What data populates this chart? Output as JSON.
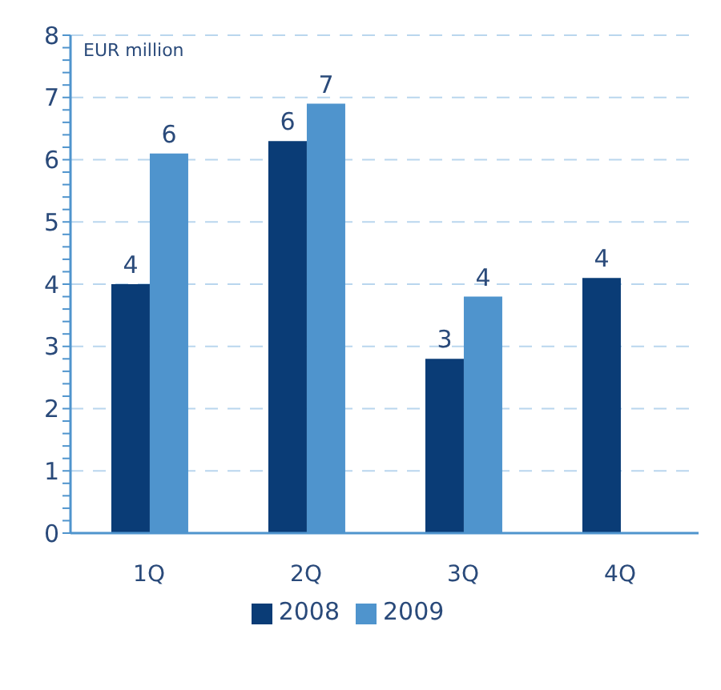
{
  "chart_data": {
    "type": "bar",
    "ylabel": "EUR million",
    "categories": [
      "1Q",
      "2Q",
      "3Q",
      "4Q"
    ],
    "series": [
      {
        "name": "2008",
        "color": "#0a3c76",
        "values": [
          4.0,
          6.3,
          2.8,
          4.1
        ],
        "value_labels": [
          "4",
          "6",
          "3",
          "4"
        ]
      },
      {
        "name": "2009",
        "color": "#4f94cd",
        "values": [
          6.1,
          6.9,
          3.8,
          null
        ],
        "value_labels": [
          "6",
          "7",
          "4",
          null
        ]
      }
    ],
    "ylim": [
      0,
      8
    ],
    "yticks": [
      0,
      {
        "value": 0.2,
        "label": null
      },
      {
        "value": 0.4,
        "label": null
      },
      {
        "value": 0.6,
        "label": null
      },
      {
        "value": 0.8,
        "label": null
      },
      1,
      {
        "value": 1.2,
        "label": null
      },
      {
        "value": 1.4,
        "label": null
      },
      {
        "value": 1.6,
        "label": null
      },
      {
        "value": 1.8,
        "label": null
      },
      2,
      {
        "value": 2.2,
        "label": null
      },
      {
        "value": 2.4,
        "label": null
      },
      {
        "value": 2.6,
        "label": null
      },
      {
        "value": 2.8,
        "label": null
      },
      3,
      {
        "value": 3.2,
        "label": null
      },
      {
        "value": 3.4,
        "label": null
      },
      {
        "value": 3.6,
        "label": null
      },
      {
        "value": 3.8,
        "label": null
      },
      4,
      {
        "value": 4.2,
        "label": null
      },
      {
        "value": 4.4,
        "label": null
      },
      {
        "value": 4.6,
        "label": null
      },
      {
        "value": 4.8,
        "label": null
      },
      5,
      {
        "value": 5.2,
        "label": null
      },
      {
        "value": 5.4,
        "label": null
      },
      {
        "value": 5.6,
        "label": null
      },
      {
        "value": 5.8,
        "label": null
      },
      6,
      {
        "value": 6.2,
        "label": null
      },
      {
        "value": 6.4,
        "label": null
      },
      {
        "value": 6.6,
        "label": null
      },
      {
        "value": 6.8,
        "label": null
      },
      7,
      {
        "value": 7.2,
        "label": null
      },
      {
        "value": 7.4,
        "label": null
      },
      {
        "value": 7.6,
        "label": null
      },
      {
        "value": 7.8,
        "label": null
      },
      8
    ],
    "grid": "y",
    "legend": "bottom"
  }
}
